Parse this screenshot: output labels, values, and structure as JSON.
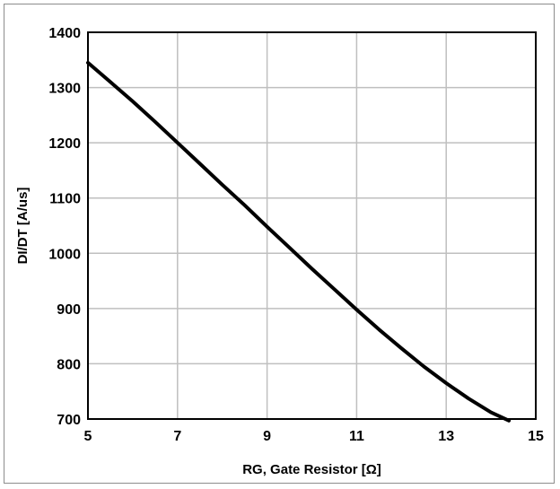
{
  "chart_data": {
    "type": "line",
    "title": "",
    "xlabel": "RG, Gate Resistor [Ω]",
    "ylabel": "DI/DT [A/us]",
    "xlim": [
      5,
      15
    ],
    "ylim": [
      700,
      1400
    ],
    "xticks": [
      5,
      7,
      9,
      11,
      13,
      15
    ],
    "yticks": [
      700,
      800,
      900,
      1000,
      1100,
      1200,
      1300,
      1400
    ],
    "xtick_labels": [
      "5",
      "7",
      "9",
      "11",
      "13",
      "15"
    ],
    "ytick_labels": [
      "700",
      "800",
      "900",
      "1000",
      "1100",
      "1200",
      "1300",
      "1400"
    ],
    "grid": true,
    "legend": "none",
    "line_color": "#000000",
    "grid_color": "#bfbfbf",
    "series": [
      {
        "x": [
          5,
          5.5,
          6,
          6.5,
          7,
          7.5,
          8,
          8.5,
          9,
          9.5,
          10,
          10.5,
          11,
          11.5,
          12,
          12.5,
          13,
          13.5,
          14,
          14.4
        ],
        "values": [
          1345,
          1310,
          1275,
          1238,
          1200,
          1162,
          1124,
          1087,
          1048,
          1010,
          972,
          935,
          898,
          862,
          828,
          795,
          765,
          737,
          712,
          697
        ]
      }
    ]
  }
}
